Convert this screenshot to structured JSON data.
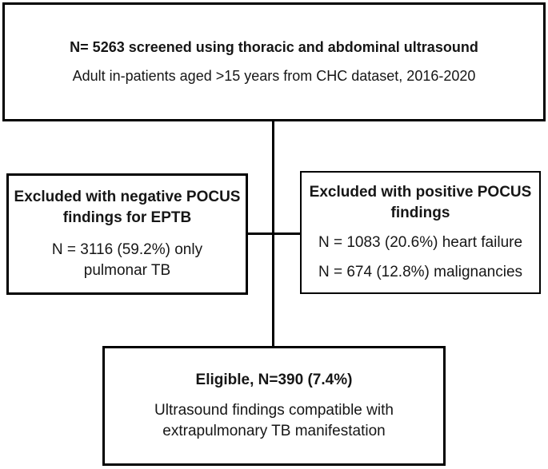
{
  "figure": {
    "type": "flow-diagram",
    "background_color": "#ffffff",
    "line_color": "#000000",
    "text_color": "#161616"
  },
  "boxes": {
    "screened": {
      "title": "N= 5263 screened using thoracic and abdominal ultrasound",
      "subtitle": "Adult in-patients aged >15 years from CHC dataset, 2016-2020"
    },
    "excluded_negative": {
      "title": "Excluded with negative POCUS\nfindings for EPTB",
      "body": "N = 3116 (59.2%) only\npulmonar TB"
    },
    "excluded_positive": {
      "title": "Excluded with positive POCUS\nfindings",
      "body_line1": "N = 1083 (20.6%) heart failure",
      "body_line2": "N = 674 (12.8%) malignancies"
    },
    "eligible": {
      "title": "Eligible, N=390 (7.4%)",
      "body": "Ultrasound findings compatible with\nextrapulmonary TB manifestation"
    }
  }
}
